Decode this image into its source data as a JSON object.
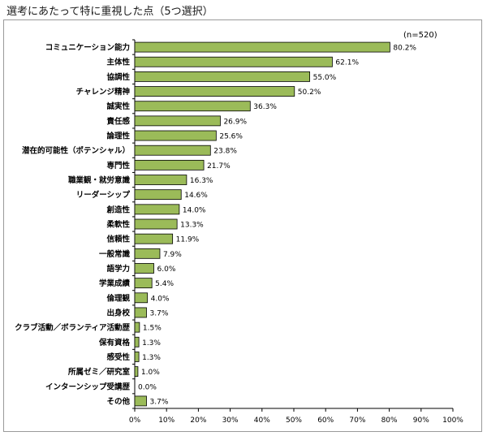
{
  "title": "選考にあたって特に重視した点（5つ選択）",
  "chart_data": {
    "type": "bar",
    "orientation": "horizontal",
    "title": "選考にあたって特に重視した点（5つ選択）",
    "note": "(n=520)",
    "categories": [
      "コミュニケーション能力",
      "主体性",
      "協調性",
      "チャレンジ精神",
      "誠実性",
      "責任感",
      "論理性",
      "潜在的可能性（ポテンシャル）",
      "専門性",
      "職業観・就労意識",
      "リーダーシップ",
      "創造性",
      "柔軟性",
      "信頼性",
      "一般常識",
      "語学力",
      "学業成績",
      "倫理観",
      "出身校",
      "クラブ活動／ボランティア活動歴",
      "保有資格",
      "感受性",
      "所属ゼミ／研究室",
      "インターンシップ受講歴",
      "その他"
    ],
    "values": [
      80.2,
      62.1,
      55.0,
      50.2,
      36.3,
      26.9,
      25.6,
      23.8,
      21.7,
      16.3,
      14.6,
      14.0,
      13.3,
      11.9,
      7.9,
      6.0,
      5.4,
      4.0,
      3.7,
      1.5,
      1.3,
      1.3,
      1.0,
      0.0,
      3.7
    ],
    "value_labels": [
      "80.2%",
      "62.1%",
      "55.0%",
      "50.2%",
      "36.3%",
      "26.9%",
      "25.6%",
      "23.8%",
      "21.7%",
      "16.3%",
      "14.6%",
      "14.0%",
      "13.3%",
      "11.9%",
      "7.9%",
      "6.0%",
      "5.4%",
      "4.0%",
      "3.7%",
      "1.5%",
      "1.3%",
      "1.3%",
      "1.0%",
      "0.0%",
      "3.7%"
    ],
    "xlim": [
      0,
      100
    ],
    "xticks": [
      "0%",
      "10%",
      "20%",
      "30%",
      "40%",
      "50%",
      "60%",
      "70%",
      "80%",
      "90%",
      "100%"
    ],
    "bar_color": "#9bbb59",
    "bar_edge_color": "#000000",
    "grid": false
  }
}
